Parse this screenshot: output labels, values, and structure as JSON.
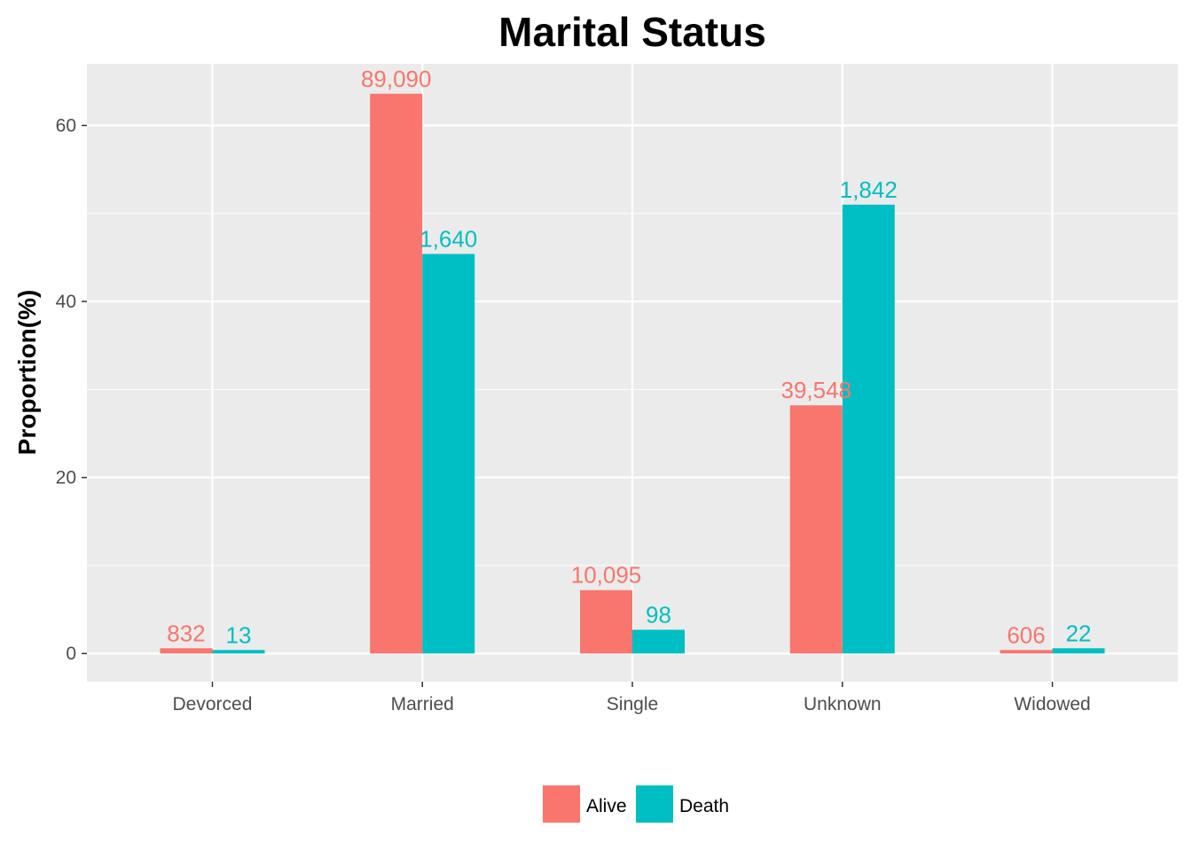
{
  "chart_data": {
    "type": "bar",
    "title": "Marital Status",
    "xlabel": "",
    "ylabel": "Proportion(%)",
    "categories": [
      "Devorced",
      "Married",
      "Single",
      "Unknown",
      "Widowed"
    ],
    "ylim": [
      -3.2,
      67
    ],
    "yticks": [
      0,
      20,
      40,
      60
    ],
    "grid": true,
    "legend_position": "bottom",
    "series": [
      {
        "name": "Alive",
        "color": "#F8766D",
        "values": [
          0.6,
          63.6,
          7.2,
          28.2,
          0.4
        ],
        "labels": [
          "832",
          "89,090",
          "10,095",
          "39,548",
          "606"
        ]
      },
      {
        "name": "Death",
        "color": "#00BFC4",
        "values": [
          0.4,
          45.4,
          2.7,
          51.0,
          0.6
        ],
        "labels": [
          "13",
          "1,640",
          "98",
          "1,842",
          "22"
        ]
      }
    ]
  },
  "colors": {
    "panel_background": "#EBEBEB",
    "grid_line": "#FFFFFF"
  }
}
